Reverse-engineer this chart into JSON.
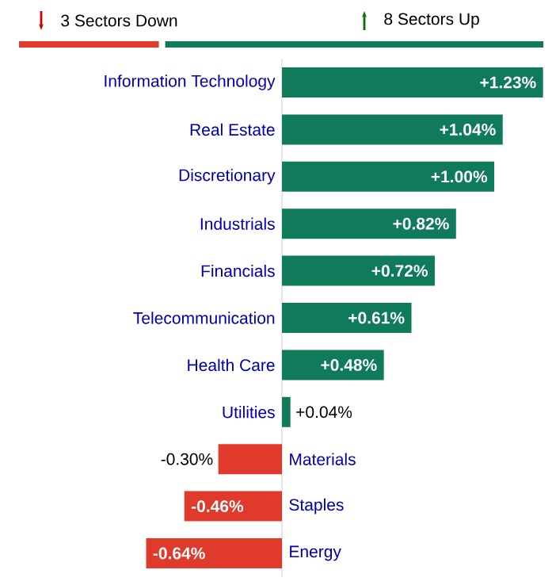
{
  "chart_data": {
    "type": "bar",
    "orientation": "horizontal",
    "annotations": [
      "3 Sectors Down",
      "8 Sectors Up"
    ],
    "categories": [
      "Information Technology",
      "Real Estate",
      "Discretionary",
      "Industrials",
      "Financials",
      "Telecommunication",
      "Health Care",
      "Utilities",
      "Materials",
      "Staples",
      "Energy"
    ],
    "values": [
      1.23,
      1.04,
      1.0,
      0.82,
      0.72,
      0.61,
      0.48,
      0.04,
      -0.3,
      -0.46,
      -0.64
    ],
    "value_labels": [
      "+1.23%",
      "+1.04%",
      "+1.00%",
      "+0.82%",
      "+0.72%",
      "+0.61%",
      "+0.48%",
      "+0.04%",
      "-0.30%",
      "-0.46%",
      "-0.64%"
    ],
    "colors": [
      "#0f7b5b",
      "#0f7b5b",
      "#0f7b5b",
      "#0f7b5b",
      "#0f7b5b",
      "#0f7b5b",
      "#0f7b5b",
      "#0f7b5b",
      "#e03a2c",
      "#e03a2c",
      "#e03a2c"
    ],
    "grid": false
  }
}
